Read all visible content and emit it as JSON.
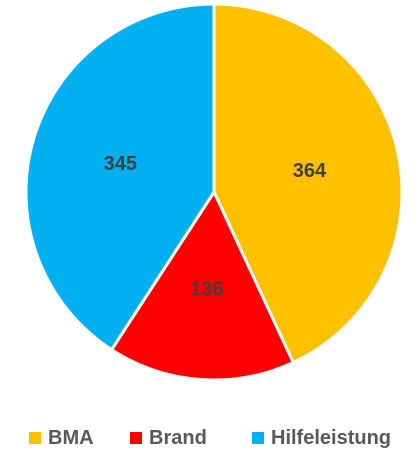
{
  "chart_data": {
    "type": "pie",
    "title": "",
    "start_angle_deg": 0,
    "direction": "clockwise",
    "slices": [
      {
        "label": "BMA",
        "value": 364,
        "color": "#FFC000"
      },
      {
        "label": "Brand",
        "value": 136,
        "color": "#FF0000"
      },
      {
        "label": "Hilfeleistung",
        "value": 345,
        "color": "#00B0F0"
      }
    ],
    "data_labels": [
      "364",
      "136",
      "345"
    ],
    "legend": {
      "position": "bottom",
      "entries": [
        "BMA",
        "Brand",
        "Hilfeleistung"
      ]
    },
    "separator_color": "#FFFFFF"
  }
}
